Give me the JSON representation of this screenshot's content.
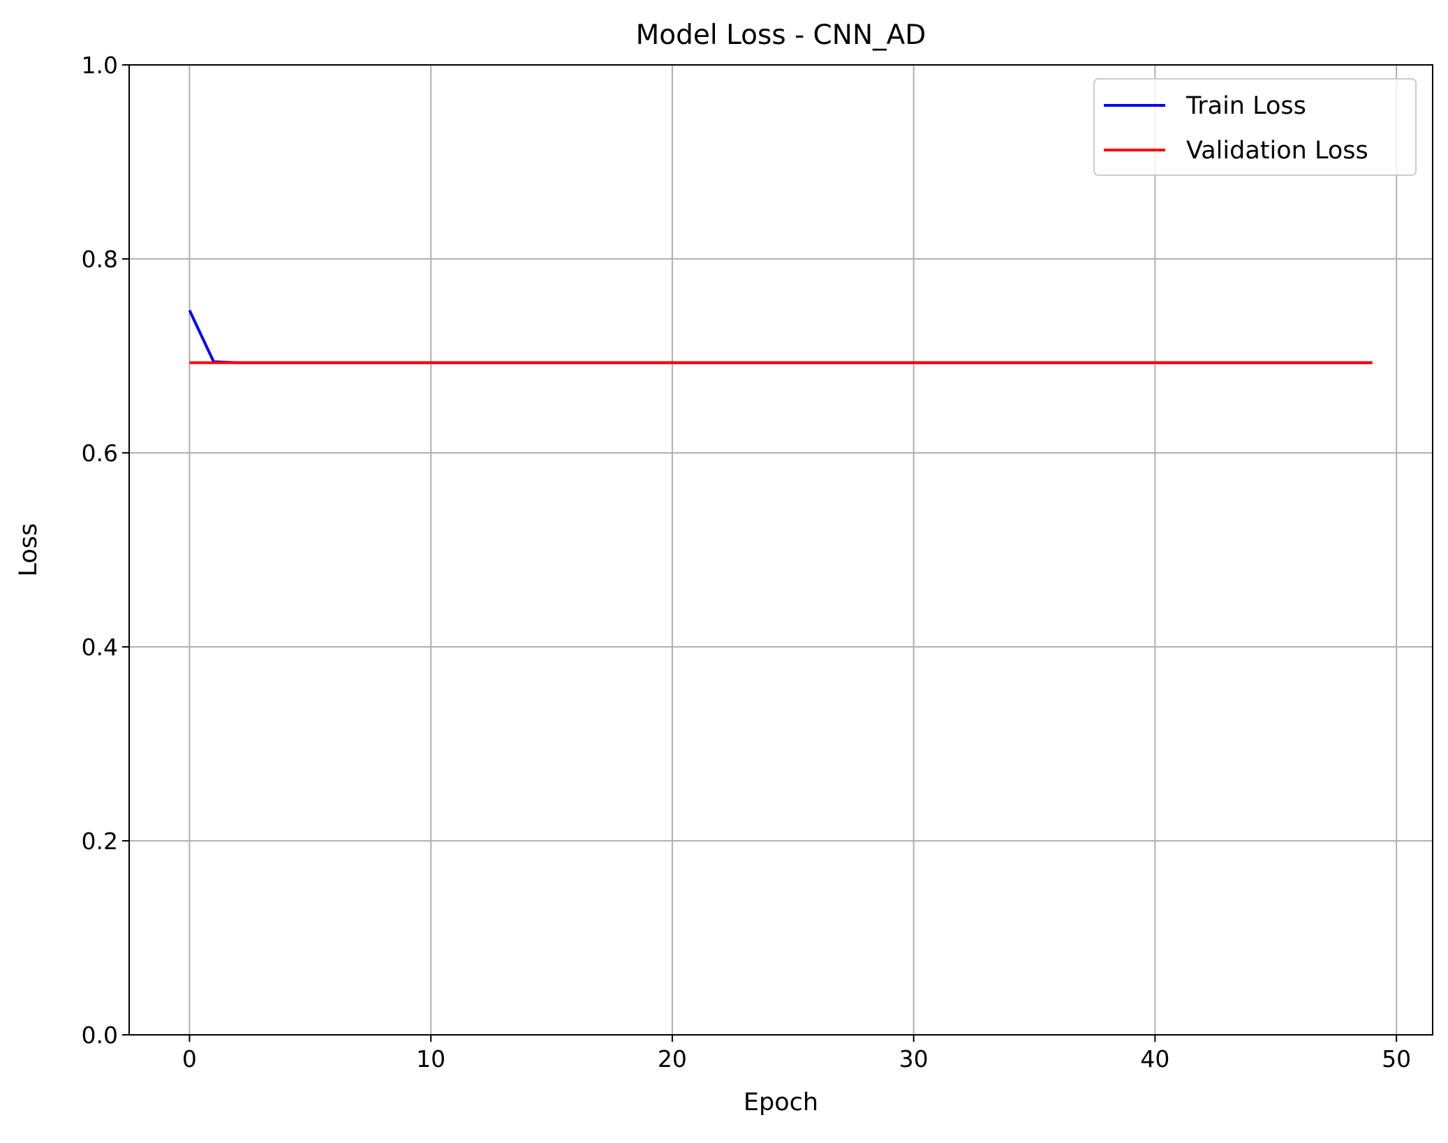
{
  "chart_data": {
    "type": "line",
    "title": "Model Loss - CNN_AD",
    "xlabel": "Epoch",
    "ylabel": "Loss",
    "xlim": [
      -2.5,
      51.5
    ],
    "ylim": [
      0,
      1.0
    ],
    "x_ticks": [
      0,
      10,
      20,
      30,
      40,
      50
    ],
    "y_ticks": [
      0.0,
      0.2,
      0.4,
      0.6,
      0.8,
      1.0
    ],
    "x_tick_labels": [
      "0",
      "10",
      "20",
      "30",
      "40",
      "50"
    ],
    "y_tick_labels": [
      "0.0",
      "0.2",
      "0.4",
      "0.6",
      "0.8",
      "1.0"
    ],
    "grid": true,
    "legend": "upper right",
    "series": [
      {
        "name": "Train Loss",
        "color": "#0000ff",
        "x": [
          0,
          1,
          2,
          3,
          4,
          5,
          6,
          7,
          8,
          9,
          10,
          11,
          12,
          13,
          14,
          15,
          16,
          17,
          18,
          19,
          20,
          21,
          22,
          23,
          24,
          25,
          26,
          27,
          28,
          29,
          30,
          31,
          32,
          33,
          34,
          35,
          36,
          37,
          38,
          39,
          40,
          41,
          42,
          43,
          44,
          45,
          46,
          47,
          48,
          49
        ],
        "y": [
          0.747,
          0.694,
          0.693,
          0.693,
          0.693,
          0.693,
          0.693,
          0.693,
          0.693,
          0.693,
          0.693,
          0.693,
          0.693,
          0.693,
          0.693,
          0.693,
          0.693,
          0.693,
          0.693,
          0.693,
          0.693,
          0.693,
          0.693,
          0.693,
          0.693,
          0.693,
          0.693,
          0.693,
          0.693,
          0.693,
          0.693,
          0.693,
          0.693,
          0.693,
          0.693,
          0.693,
          0.693,
          0.693,
          0.693,
          0.693,
          0.693,
          0.693,
          0.693,
          0.693,
          0.693,
          0.693,
          0.693,
          0.693,
          0.693,
          0.693
        ]
      },
      {
        "name": "Validation Loss",
        "color": "#ff0000",
        "x": [
          0,
          1,
          2,
          3,
          4,
          5,
          6,
          7,
          8,
          9,
          10,
          11,
          12,
          13,
          14,
          15,
          16,
          17,
          18,
          19,
          20,
          21,
          22,
          23,
          24,
          25,
          26,
          27,
          28,
          29,
          30,
          31,
          32,
          33,
          34,
          35,
          36,
          37,
          38,
          39,
          40,
          41,
          42,
          43,
          44,
          45,
          46,
          47,
          48,
          49
        ],
        "y": [
          0.693,
          0.693,
          0.693,
          0.693,
          0.693,
          0.693,
          0.693,
          0.693,
          0.693,
          0.693,
          0.693,
          0.693,
          0.693,
          0.693,
          0.693,
          0.693,
          0.693,
          0.693,
          0.693,
          0.693,
          0.693,
          0.693,
          0.693,
          0.693,
          0.693,
          0.693,
          0.693,
          0.693,
          0.693,
          0.693,
          0.693,
          0.693,
          0.693,
          0.693,
          0.693,
          0.693,
          0.693,
          0.693,
          0.693,
          0.693,
          0.693,
          0.693,
          0.693,
          0.693,
          0.693,
          0.693,
          0.693,
          0.693,
          0.693,
          0.693
        ]
      }
    ]
  }
}
